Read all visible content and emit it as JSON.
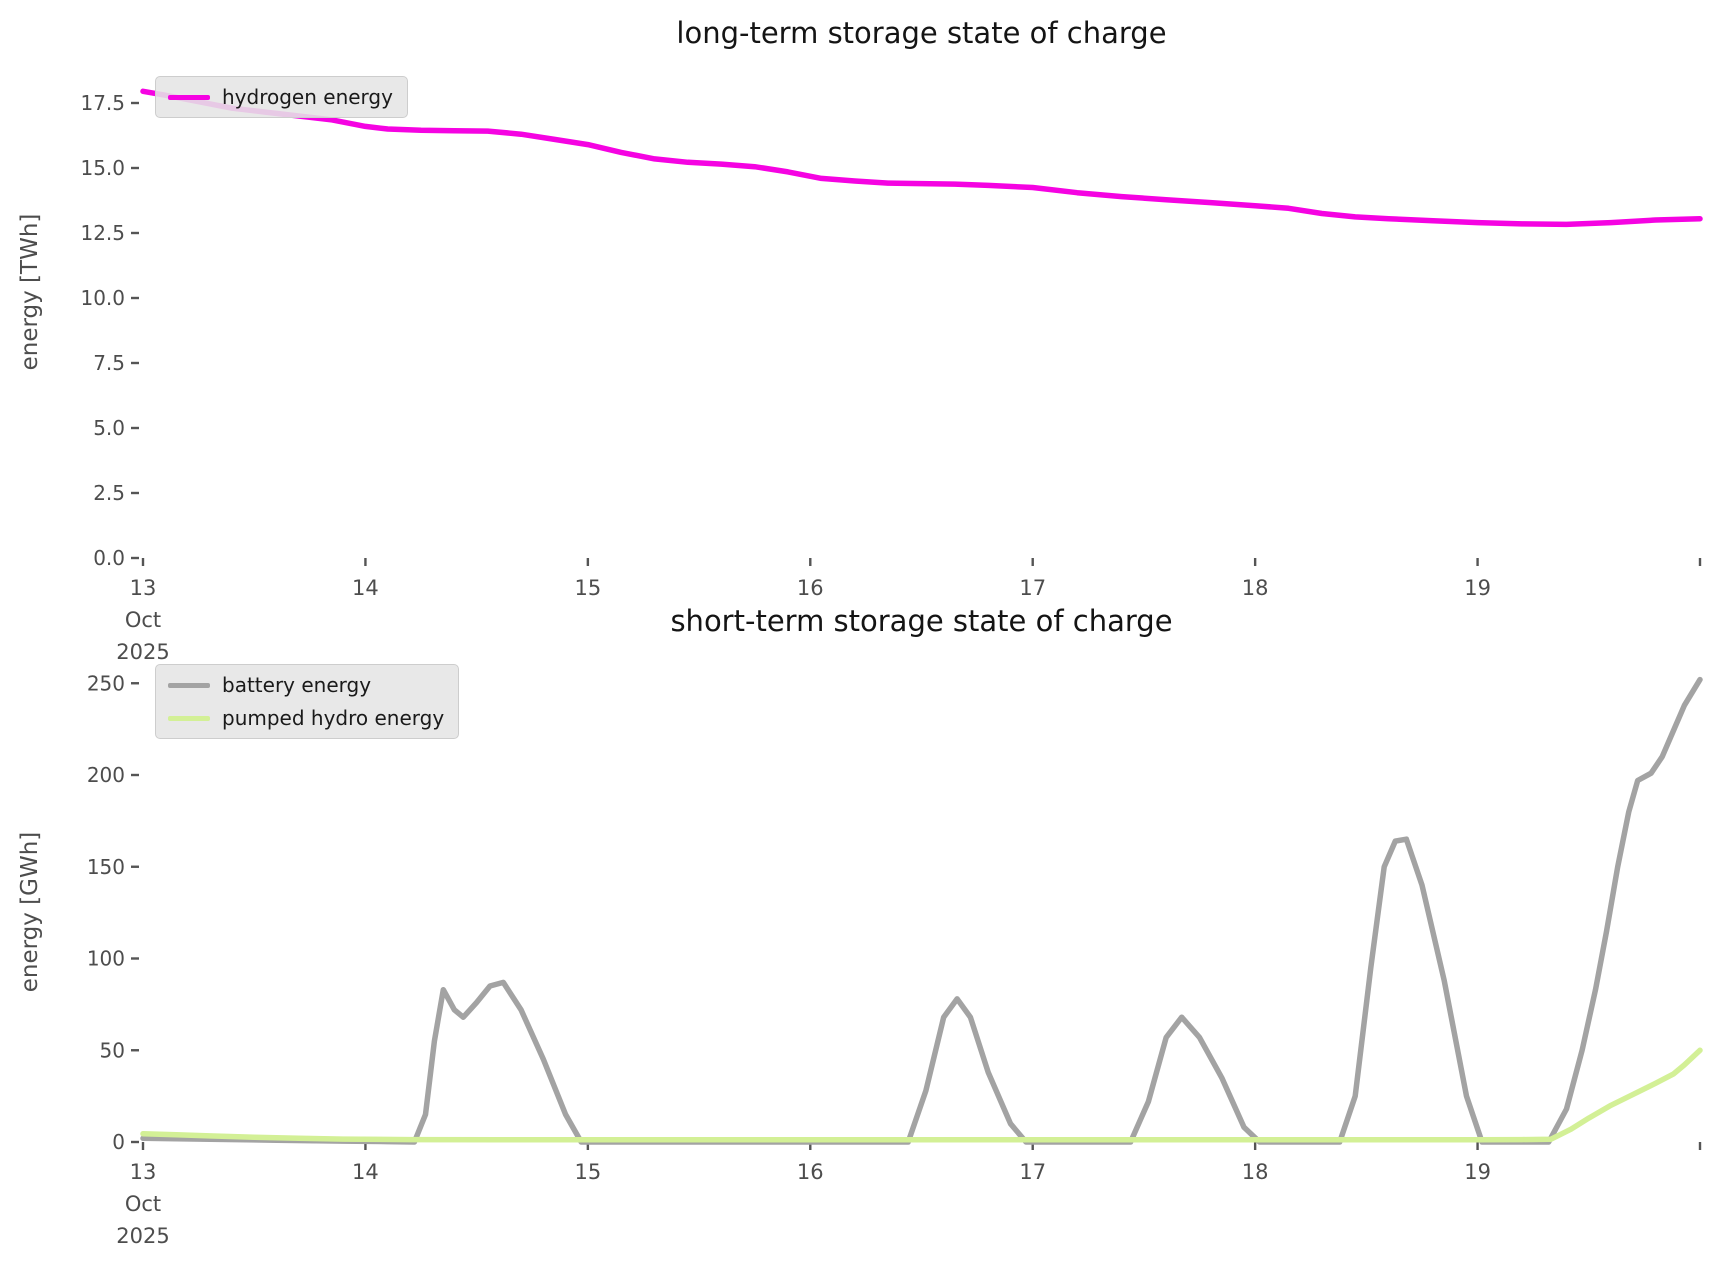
{
  "chart_data": [
    {
      "type": "line",
      "title": "long-term storage state of charge",
      "xlabel": "",
      "ylabel": "energy [TWh]",
      "xlim": [
        13,
        20
      ],
      "ylim": [
        0,
        19.15
      ],
      "grid": false,
      "legend_position": "upper-left",
      "x_axis": {
        "tick_values": [
          13,
          14,
          15,
          16,
          17,
          18,
          19,
          20
        ],
        "tick_labels": [
          "13",
          "14",
          "15",
          "16",
          "17",
          "18",
          "19",
          ""
        ],
        "first_tick_sublabels": [
          "Oct",
          "2025"
        ]
      },
      "y_axis": {
        "tick_values": [
          0.0,
          2.5,
          5.0,
          7.5,
          10.0,
          12.5,
          15.0,
          17.5
        ],
        "tick_labels": [
          "0.0",
          "2.5",
          "5.0",
          "7.5",
          "10.0",
          "12.5",
          "15.0",
          "17.5"
        ]
      },
      "series": [
        {
          "name": "hydrogen energy",
          "color": "#f503e2",
          "x": [
            13.0,
            13.1,
            13.25,
            13.4,
            13.55,
            13.7,
            13.85,
            14.0,
            14.1,
            14.25,
            14.4,
            14.55,
            14.7,
            14.85,
            15.0,
            15.15,
            15.3,
            15.45,
            15.6,
            15.75,
            15.9,
            16.05,
            16.2,
            16.35,
            16.5,
            16.65,
            16.8,
            17.0,
            17.2,
            17.4,
            17.6,
            17.8,
            18.0,
            18.15,
            18.3,
            18.45,
            18.6,
            18.8,
            19.0,
            19.2,
            19.4,
            19.6,
            19.8,
            20.0
          ],
          "y": [
            17.95,
            17.8,
            17.55,
            17.3,
            17.15,
            17.0,
            16.85,
            16.6,
            16.5,
            16.45,
            16.43,
            16.42,
            16.3,
            16.1,
            15.9,
            15.6,
            15.35,
            15.22,
            15.15,
            15.05,
            14.85,
            14.6,
            14.5,
            14.42,
            14.4,
            14.38,
            14.33,
            14.25,
            14.05,
            13.9,
            13.78,
            13.67,
            13.55,
            13.45,
            13.25,
            13.12,
            13.05,
            12.97,
            12.9,
            12.85,
            12.83,
            12.9,
            13.0,
            13.05
          ]
        }
      ]
    },
    {
      "type": "line",
      "title": "short-term storage state of charge",
      "xlabel": "",
      "ylabel": "energy [GWh]",
      "xlim": [
        13,
        20
      ],
      "ylim": [
        0,
        262
      ],
      "grid": false,
      "legend_position": "upper-left",
      "x_axis": {
        "tick_values": [
          13,
          14,
          15,
          16,
          17,
          18,
          19,
          20
        ],
        "tick_labels": [
          "13",
          "14",
          "15",
          "16",
          "17",
          "18",
          "19",
          ""
        ],
        "first_tick_sublabels": [
          "Oct",
          "2025"
        ]
      },
      "y_axis": {
        "tick_values": [
          0,
          50,
          100,
          150,
          200,
          250
        ],
        "tick_labels": [
          "0",
          "50",
          "100",
          "150",
          "200",
          "250"
        ]
      },
      "series": [
        {
          "name": "battery energy",
          "color": "#a3a3a3",
          "x": [
            13.0,
            13.3,
            13.6,
            13.9,
            14.1,
            14.22,
            14.27,
            14.31,
            14.35,
            14.4,
            14.44,
            14.5,
            14.56,
            14.62,
            14.7,
            14.8,
            14.9,
            14.97,
            15.2,
            15.6,
            16.0,
            16.3,
            16.44,
            16.52,
            16.6,
            16.66,
            16.72,
            16.8,
            16.9,
            16.97,
            17.15,
            17.3,
            17.44,
            17.52,
            17.6,
            17.67,
            17.75,
            17.85,
            17.95,
            18.02,
            18.2,
            18.38,
            18.45,
            18.52,
            18.58,
            18.63,
            18.68,
            18.75,
            18.85,
            18.95,
            19.02,
            19.15,
            19.32,
            19.4,
            19.47,
            19.53,
            19.58,
            19.63,
            19.68,
            19.72,
            19.78,
            19.83,
            19.88,
            19.93,
            20.0
          ],
          "y": [
            2,
            1.5,
            1,
            0.5,
            0.2,
            0,
            15,
            55,
            83,
            72,
            68,
            76,
            85,
            87,
            72,
            45,
            15,
            0,
            0,
            0,
            0,
            0,
            0,
            28,
            68,
            78,
            68,
            38,
            10,
            0,
            0,
            0,
            0,
            22,
            57,
            68,
            57,
            35,
            8,
            0,
            0,
            0,
            25,
            95,
            150,
            164,
            165,
            140,
            88,
            25,
            0,
            0,
            0,
            18,
            50,
            83,
            115,
            150,
            180,
            197,
            201,
            210,
            224,
            238,
            252
          ]
        },
        {
          "name": "pumped hydro energy",
          "color": "#d3f096",
          "x": [
            13.0,
            13.15,
            13.3,
            13.5,
            13.7,
            13.9,
            14.2,
            14.6,
            15.0,
            15.5,
            16.0,
            16.5,
            17.0,
            17.5,
            18.0,
            18.5,
            19.0,
            19.2,
            19.33,
            19.42,
            19.5,
            19.6,
            19.7,
            19.8,
            19.88,
            19.93,
            20.0
          ],
          "y": [
            4.5,
            4.0,
            3.3,
            2.6,
            2.0,
            1.6,
            1.3,
            1.2,
            1.2,
            1.2,
            1.2,
            1.2,
            1.2,
            1.2,
            1.2,
            1.2,
            1.2,
            1.3,
            1.5,
            7,
            13,
            20,
            26,
            32,
            37,
            42,
            50
          ]
        }
      ]
    }
  ]
}
